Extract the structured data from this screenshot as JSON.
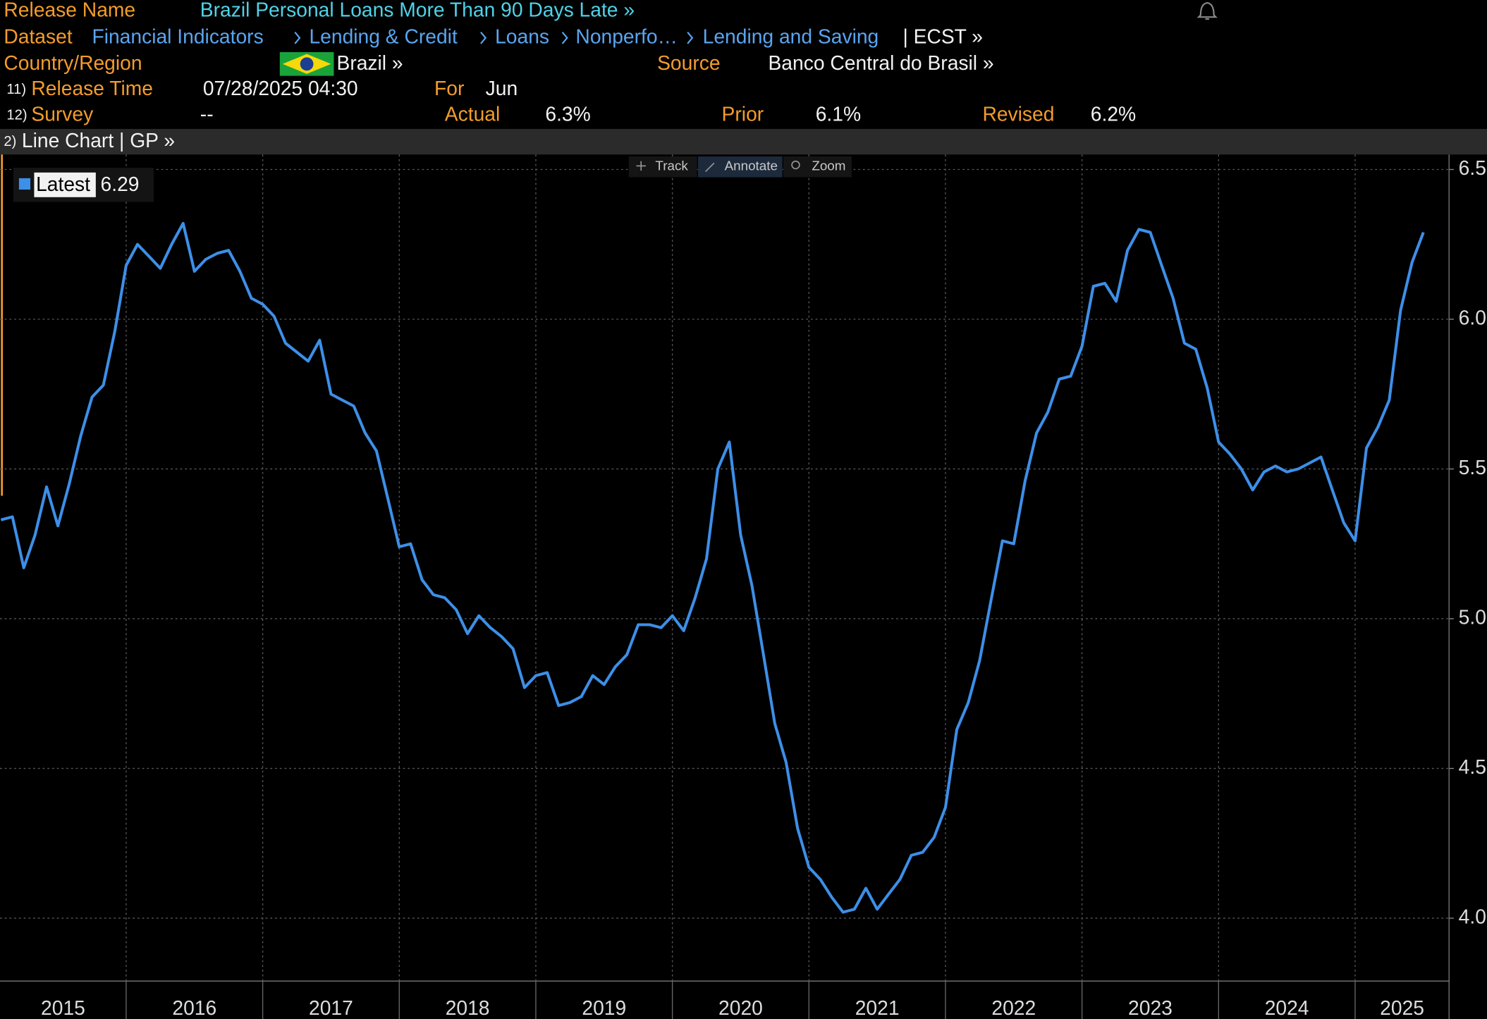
{
  "header": {
    "release_name": {
      "label": "Release Name",
      "value": "Brazil Personal Loans More Than 90 Days Late »"
    },
    "dataset": {
      "label": "Dataset",
      "path": [
        "Financial Indicators",
        "Lending & Credit",
        "Loans",
        "Nonperfo…",
        "Lending and Saving"
      ],
      "suffix": "| ECST »"
    },
    "country": {
      "label": "Country/Region",
      "value": "Brazil »"
    },
    "source": {
      "label": "Source",
      "value": "Banco Central do Brasil »"
    },
    "release_time": {
      "number": "11)",
      "label": "Release Time",
      "value": "07/28/2025 04:30"
    },
    "for": {
      "label": "For",
      "value": "Jun"
    },
    "survey": {
      "number": "12)",
      "label": "Survey",
      "value": "--"
    },
    "actual": {
      "label": "Actual",
      "value": "6.3%"
    },
    "prior": {
      "label": "Prior",
      "value": "6.1%"
    },
    "revised": {
      "label": "Revised",
      "value": "6.2%"
    }
  },
  "toolbar": {
    "number": "2)",
    "title": "Line Chart | GP »",
    "buttons": [
      "Track",
      "Annotate",
      "Zoom"
    ]
  },
  "chart_data": {
    "type": "line",
    "x": [
      2015.083,
      2015.167,
      2015.25,
      2015.333,
      2015.417,
      2015.5,
      2015.583,
      2015.667,
      2015.75,
      2015.833,
      2015.917,
      2016,
      2016.083,
      2016.167,
      2016.25,
      2016.333,
      2016.417,
      2016.5,
      2016.583,
      2016.667,
      2016.75,
      2016.833,
      2016.917,
      2017,
      2017.083,
      2017.167,
      2017.25,
      2017.333,
      2017.417,
      2017.5,
      2017.583,
      2017.667,
      2017.75,
      2017.833,
      2017.917,
      2018,
      2018.083,
      2018.167,
      2018.25,
      2018.333,
      2018.417,
      2018.5,
      2018.583,
      2018.667,
      2018.75,
      2018.833,
      2018.917,
      2019,
      2019.083,
      2019.167,
      2019.25,
      2019.333,
      2019.417,
      2019.5,
      2019.583,
      2019.667,
      2019.75,
      2019.833,
      2019.917,
      2020,
      2020.083,
      2020.167,
      2020.25,
      2020.333,
      2020.417,
      2020.5,
      2020.583,
      2020.667,
      2020.75,
      2020.833,
      2020.917,
      2021,
      2021.083,
      2021.167,
      2021.25,
      2021.333,
      2021.417,
      2021.5,
      2021.583,
      2021.667,
      2021.75,
      2021.833,
      2021.917,
      2022,
      2022.083,
      2022.167,
      2022.25,
      2022.333,
      2022.417,
      2022.5,
      2022.583,
      2022.667,
      2022.75,
      2022.833,
      2022.917,
      2023,
      2023.083,
      2023.167,
      2023.25,
      2023.333,
      2023.417,
      2023.5,
      2023.583,
      2023.667,
      2023.75,
      2023.833,
      2023.917,
      2024,
      2024.083,
      2024.167,
      2024.25,
      2024.333,
      2024.417,
      2024.5,
      2024.583,
      2024.667,
      2024.75,
      2024.833,
      2024.917,
      2025,
      2025.083,
      2025.167,
      2025.25,
      2025.333,
      2025.417,
      2025.5
    ],
    "series": [
      {
        "name": "Latest",
        "color": "#3d8fe8",
        "values": [
          5.33,
          5.34,
          5.17,
          5.28,
          5.44,
          5.31,
          5.45,
          5.61,
          5.74,
          5.78,
          5.96,
          6.18,
          6.25,
          6.21,
          6.17,
          6.25,
          6.32,
          6.16,
          6.2,
          6.22,
          6.23,
          6.16,
          6.07,
          6.05,
          6.01,
          5.92,
          5.89,
          5.86,
          5.93,
          5.75,
          5.73,
          5.71,
          5.62,
          5.56,
          5.4,
          5.24,
          5.25,
          5.13,
          5.08,
          5.07,
          5.03,
          4.95,
          5.01,
          4.97,
          4.94,
          4.9,
          4.77,
          4.81,
          4.82,
          4.71,
          4.72,
          4.74,
          4.81,
          4.78,
          4.84,
          4.88,
          4.98,
          4.98,
          4.97,
          5.01,
          4.96,
          5.07,
          5.2,
          5.5,
          5.59,
          5.28,
          5.11,
          4.88,
          4.65,
          4.52,
          4.3,
          4.17,
          4.13,
          4.07,
          4.02,
          4.03,
          4.1,
          4.03,
          4.08,
          4.13,
          4.21,
          4.22,
          4.27,
          4.37,
          4.63,
          4.72,
          4.86,
          5.06,
          5.26,
          5.25,
          5.46,
          5.62,
          5.69,
          5.8,
          5.81,
          5.91,
          6.11,
          6.12,
          6.06,
          6.23,
          6.3,
          6.29,
          6.18,
          6.07,
          5.92,
          5.9,
          5.77,
          5.59,
          5.55,
          5.5,
          5.43,
          5.49,
          5.51,
          5.49,
          5.5,
          5.52,
          5.54,
          5.43,
          5.32,
          5.26,
          5.57,
          5.64,
          5.73,
          6.03,
          6.19,
          6.29
        ]
      }
    ],
    "xlim": [
      2015.076,
      2025.688
    ],
    "xticks": [
      2015,
      2016,
      2017,
      2018,
      2019,
      2020,
      2021,
      2022,
      2023,
      2024,
      2025
    ],
    "ylim": [
      3.79,
      6.55
    ],
    "yticks": [
      {
        "value": 4,
        "label": "4.00"
      },
      {
        "value": 4.5,
        "label": "4.50"
      },
      {
        "value": 5,
        "label": "5.00"
      },
      {
        "value": 5.5,
        "label": "5.50"
      },
      {
        "value": 6,
        "label": "6.00"
      },
      {
        "value": 6.5,
        "label": "6.50"
      }
    ],
    "grid": true
  }
}
